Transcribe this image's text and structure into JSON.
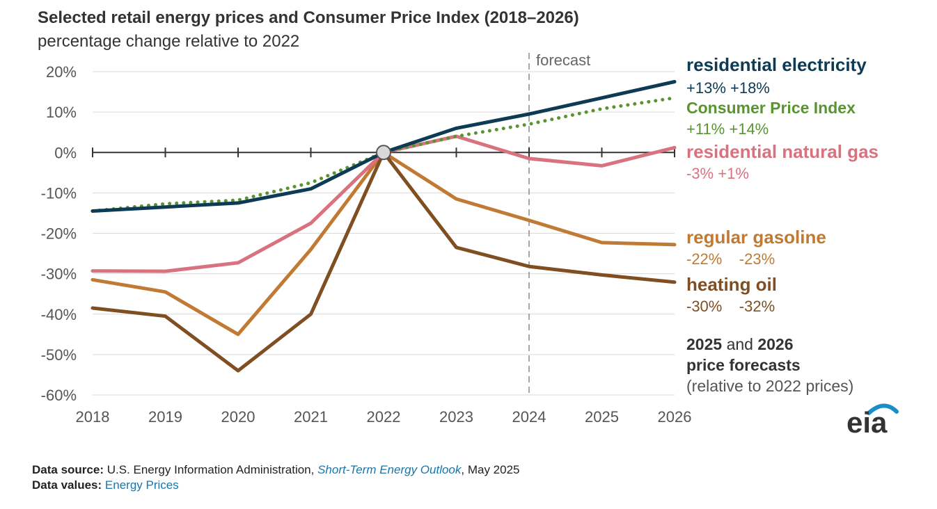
{
  "title": "Selected retail energy prices and Consumer Price Index (2018–2026)",
  "subtitle": "percentage change relative to 2022",
  "chart_data": {
    "type": "line",
    "title": "Selected retail energy prices and Consumer Price Index (2018–2026)",
    "subtitle": "percentage change relative to 2022",
    "x": [
      "2018",
      "2019",
      "2020",
      "2021",
      "2022",
      "2023",
      "2024",
      "2025",
      "2026"
    ],
    "ylim": [
      -60,
      20
    ],
    "yticks": [
      20,
      10,
      0,
      -10,
      -20,
      -30,
      -40,
      -50,
      -60
    ],
    "ytick_labels": [
      "20%",
      "10%",
      "0%",
      "-10%",
      "-20%",
      "-30%",
      "-40%",
      "-50%",
      "-60%"
    ],
    "grid": "horizontal",
    "forecast_start": "2024",
    "forecast_label": "forecast",
    "reference_point": {
      "x": "2022",
      "y": 0
    },
    "series": [
      {
        "name": "residential electricity",
        "color": "#0d3a54",
        "style": "solid",
        "values": [
          -14.5,
          -13.5,
          -12.5,
          -9,
          0,
          6,
          9.5,
          13.5,
          17.5
        ],
        "label_values": "+13% +18%"
      },
      {
        "name": "Consumer Price Index",
        "color": "#5a9431",
        "style": "dotted",
        "values": [
          -14.5,
          -12.7,
          -11.8,
          -7.5,
          0,
          4,
          7,
          10.8,
          13.5
        ],
        "label_values": "+11% +14%"
      },
      {
        "name": "residential natural gas",
        "color": "#d9727f",
        "style": "solid",
        "values": [
          -29.3,
          -29.4,
          -27.3,
          -17.5,
          0,
          4,
          -1.5,
          -3.3,
          1.2
        ],
        "label_values": "-3% +1%"
      },
      {
        "name": "regular gasoline",
        "color": "#c17a33",
        "style": "solid",
        "values": [
          -31.5,
          -34.5,
          -45,
          -24,
          0,
          -11.5,
          -16.8,
          -22.3,
          -22.8
        ],
        "label_values": "-22%    -23%"
      },
      {
        "name": "heating oil",
        "color": "#7f4f22",
        "style": "solid",
        "values": [
          -38.5,
          -40.5,
          -54,
          -40,
          0,
          -23.5,
          -28.2,
          -30.3,
          -32.1
        ],
        "label_values": "-30%    -32%"
      }
    ]
  },
  "forecast_note": {
    "year1": "2025",
    "and": "and",
    "year2": "2026",
    "line2": "price forecasts",
    "line3": "(relative to 2022 prices)"
  },
  "logo": {
    "text": "eia",
    "arc_color": "#1a8fc7"
  },
  "footer": {
    "source_label": "Data source:",
    "source_text": "U.S. Energy Information Administration,",
    "source_link": "Short-Term Energy Outlook",
    "source_date": ", May 2025",
    "values_label": "Data values:",
    "values_link": "Energy Prices"
  }
}
